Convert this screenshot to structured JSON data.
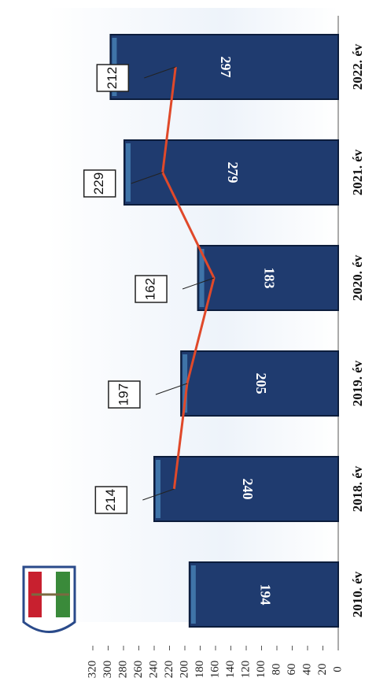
{
  "chart_data": {
    "type": "bar",
    "orientation": "horizontal",
    "categories": [
      "2010. év",
      "2018. év",
      "2019. év",
      "2020. év",
      "2021. év",
      "2022. év"
    ],
    "series": [
      {
        "type": "bar",
        "color": "#1f3b6f",
        "values": [
          194,
          240,
          205,
          183,
          279,
          297
        ]
      },
      {
        "type": "line",
        "color": "#e0492a",
        "values": [
          null,
          214,
          197,
          162,
          229,
          212
        ]
      }
    ],
    "xlim": [
      0,
      320
    ],
    "xticks": [
      0,
      20,
      40,
      60,
      80,
      100,
      120,
      140,
      160,
      180,
      200,
      220,
      240,
      260,
      280,
      300,
      320
    ]
  }
}
